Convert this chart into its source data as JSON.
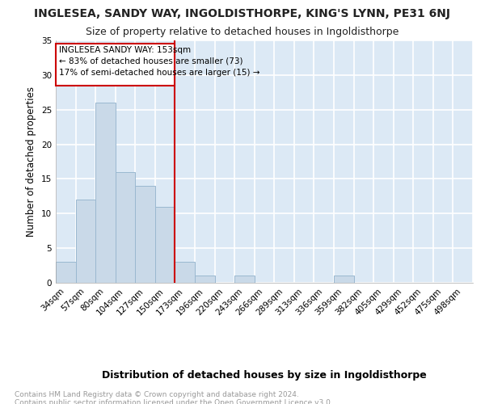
{
  "title": "INGLESEA, SANDY WAY, INGOLDISTHORPE, KING'S LYNN, PE31 6NJ",
  "subtitle": "Size of property relative to detached houses in Ingoldisthorpe",
  "xlabel": "Distribution of detached houses by size in Ingoldisthorpe",
  "ylabel": "Number of detached properties",
  "footnote": "Contains HM Land Registry data © Crown copyright and database right 2024.\nContains public sector information licensed under the Open Government Licence v3.0.",
  "bin_labels": [
    "34sqm",
    "57sqm",
    "80sqm",
    "104sqm",
    "127sqm",
    "150sqm",
    "173sqm",
    "196sqm",
    "220sqm",
    "243sqm",
    "266sqm",
    "289sqm",
    "313sqm",
    "336sqm",
    "359sqm",
    "382sqm",
    "405sqm",
    "429sqm",
    "452sqm",
    "475sqm",
    "498sqm"
  ],
  "bar_values": [
    3,
    12,
    26,
    16,
    14,
    11,
    3,
    1,
    0,
    1,
    0,
    0,
    0,
    0,
    1,
    0,
    0,
    0,
    0,
    0,
    0
  ],
  "bar_color": "#c9d9e8",
  "bar_edge_color": "#9ab8d0",
  "vline_color": "#cc0000",
  "annotation_text": "INGLESEA SANDY WAY: 153sqm\n← 83% of detached houses are smaller (73)\n17% of semi-detached houses are larger (15) →",
  "annotation_box_color": "#ffffff",
  "annotation_box_edge": "#cc0000",
  "ylim": [
    0,
    35
  ],
  "yticks": [
    0,
    5,
    10,
    15,
    20,
    25,
    30,
    35
  ],
  "background_color": "#dce9f5",
  "grid_color": "#ffffff",
  "title_fontsize": 10,
  "subtitle_fontsize": 9,
  "xlabel_fontsize": 9,
  "ylabel_fontsize": 8.5,
  "tick_fontsize": 7.5,
  "footnote_fontsize": 6.5
}
